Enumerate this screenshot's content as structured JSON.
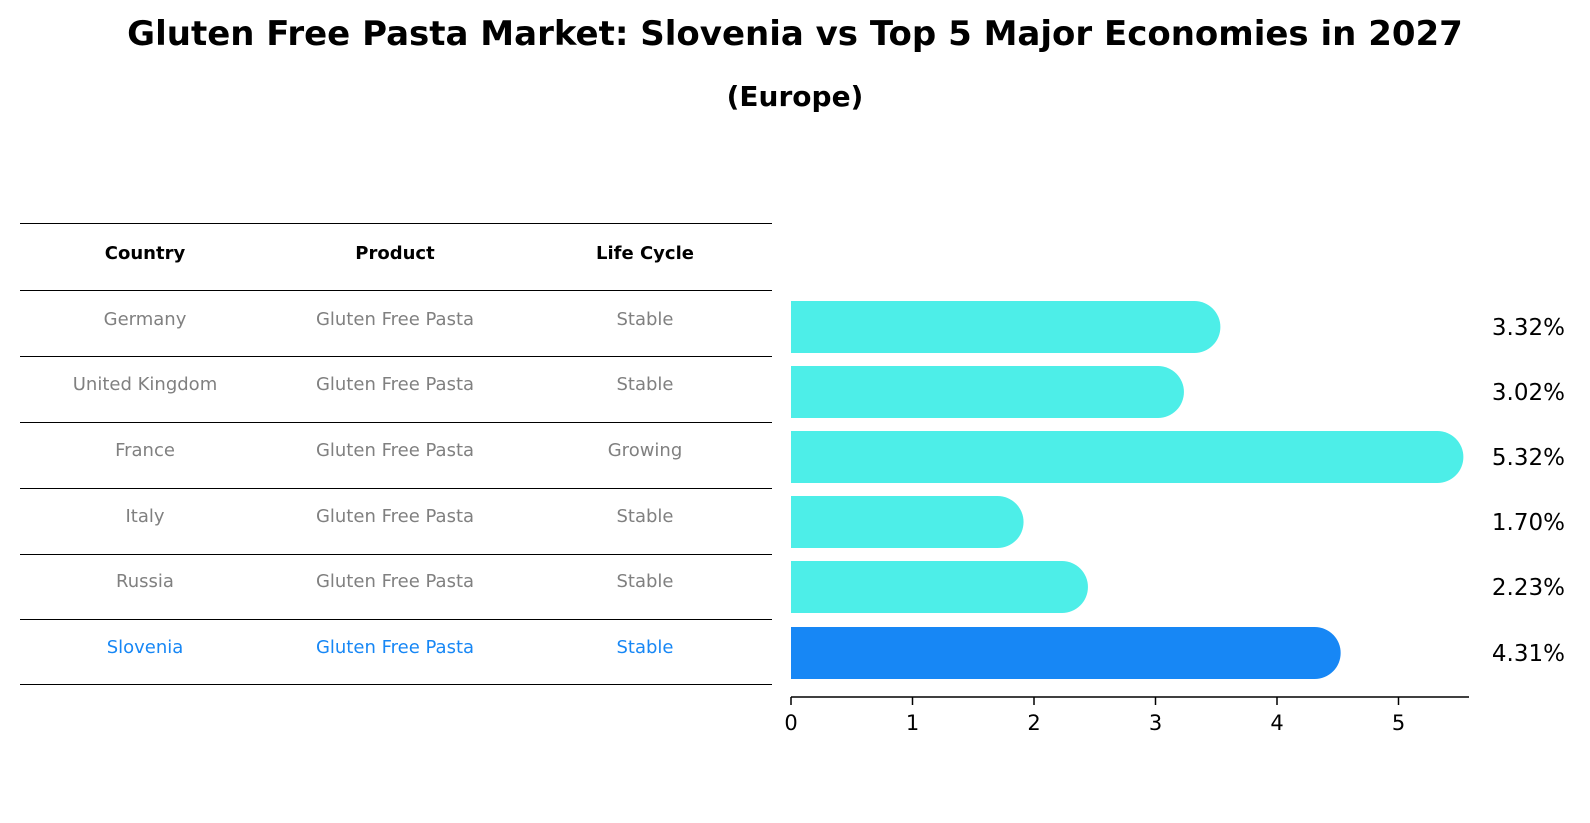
{
  "title": "Gluten Free Pasta Market: Slovenia vs Top 5 Major Economies in 2027",
  "subtitle": "(Europe)",
  "table": {
    "headers": [
      "Country",
      "Product",
      "Life Cycle"
    ],
    "rows": [
      {
        "country": "Germany",
        "product": "Gluten Free Pasta",
        "life_cycle": "Stable"
      },
      {
        "country": "United Kingdom",
        "product": "Gluten Free Pasta",
        "life_cycle": "Stable"
      },
      {
        "country": "France",
        "product": "Gluten Free Pasta",
        "life_cycle": "Growing"
      },
      {
        "country": "Italy",
        "product": "Gluten Free Pasta",
        "life_cycle": "Stable"
      },
      {
        "country": "Russia",
        "product": "Gluten Free Pasta",
        "life_cycle": "Stable"
      },
      {
        "country": "Slovenia",
        "product": "Gluten Free Pasta",
        "life_cycle": "Stable"
      }
    ]
  },
  "chart_data": {
    "type": "bar",
    "orientation": "horizontal",
    "categories": [
      "Germany",
      "United Kingdom",
      "France",
      "Italy",
      "Russia",
      "Slovenia"
    ],
    "values": [
      3.32,
      3.02,
      5.32,
      1.7,
      2.23,
      4.31
    ],
    "value_labels": [
      "3.32%",
      "3.02%",
      "5.32%",
      "1.70%",
      "2.23%",
      "4.31%"
    ],
    "highlight": "Slovenia",
    "xlim": [
      0,
      5.6
    ],
    "xticks": [
      0,
      1,
      2,
      3,
      4,
      5
    ],
    "colors": {
      "default": "#4deee8",
      "highlight": "#1787f5"
    }
  }
}
